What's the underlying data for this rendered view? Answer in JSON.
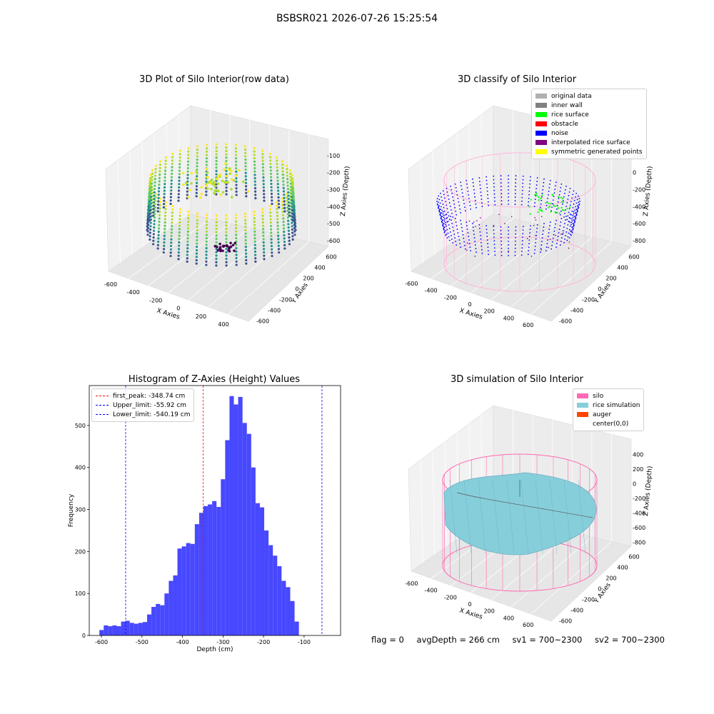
{
  "figure": {
    "suptitle": "BSBSR021 2026-07-26 15:25:54"
  },
  "status": {
    "flag": "flag = 0",
    "avg_depth": "avgDepth = 266 cm",
    "sv1": "sv1 = 700~2300",
    "sv2": "sv2 = 700~2300"
  },
  "chart_data": [
    {
      "id": "raw3d",
      "type": "scatter",
      "title": "3D Plot of Silo Interior(row data)",
      "xlabel": "X Axies",
      "ylabel": "Y Axies",
      "zlabel": "Z Axies (Depth)",
      "x_ticks": [
        "-600",
        "-400",
        "-200",
        "0",
        "200",
        "400"
      ],
      "y_ticks": [
        "600",
        "400",
        "200",
        "0",
        "-200",
        "-400",
        "-600"
      ],
      "z_ticks": [
        "-100",
        "-200",
        "-300",
        "-400",
        "-500",
        "-600"
      ],
      "colormap": "viridis",
      "colors": {
        "deep": "#440154",
        "mid": "#21918c",
        "shallow": "#fde725"
      }
    },
    {
      "id": "classify3d",
      "type": "scatter",
      "title": "3D classify of Silo Interior",
      "xlabel": "X Axies",
      "ylabel": "Y Axies",
      "zlabel": "Z Axies (Depth)",
      "x_ticks": [
        "-600",
        "-400",
        "-200",
        "0",
        "200",
        "400",
        "600"
      ],
      "y_ticks": [
        "600",
        "400",
        "200",
        "0",
        "-200",
        "-400",
        "-600"
      ],
      "z_ticks": [
        "200",
        "0",
        "-200",
        "-400",
        "-600",
        "-800"
      ],
      "legend": [
        {
          "label": "original data",
          "color": "#b0b0b0"
        },
        {
          "label": "inner wall",
          "color": "#808080"
        },
        {
          "label": "rice surface",
          "color": "#00ff00"
        },
        {
          "label": "obstacle",
          "color": "#ff0000"
        },
        {
          "label": "noise",
          "color": "#0000ff"
        },
        {
          "label": "interpolated rice surface",
          "color": "#800080"
        },
        {
          "label": "symmetric generated points",
          "color": "#ffff00"
        }
      ],
      "wall_color": "#ffb6d9"
    },
    {
      "id": "histogram",
      "type": "bar",
      "title": "Histogram of Z-Axies (Height) Values",
      "xlabel": "Depth (cm)",
      "ylabel": "Frequency",
      "xlim": [
        -630,
        -10
      ],
      "ylim": [
        0,
        595
      ],
      "x_ticks": [
        -600,
        -500,
        -400,
        -300,
        -200,
        -100
      ],
      "y_ticks": [
        0,
        100,
        200,
        300,
        400,
        500
      ],
      "bar_color": "#4848ff",
      "bin_start": -605,
      "bin_width": 10.7,
      "values": [
        13,
        24,
        22,
        24,
        22,
        33,
        35,
        30,
        28,
        30,
        32,
        50,
        68,
        75,
        72,
        100,
        130,
        143,
        207,
        212,
        220,
        218,
        265,
        292,
        308,
        312,
        320,
        306,
        372,
        465,
        570,
        550,
        568,
        506,
        480,
        400,
        315,
        305,
        250,
        215,
        190,
        165,
        130,
        115,
        82,
        33
      ],
      "lines": [
        {
          "label": "first_peak: -348.74 cm",
          "value": -348.74,
          "color": "#ff0000"
        },
        {
          "label": "Upper_limit: -55.92 cm",
          "value": -55.92,
          "color": "#0000ff"
        },
        {
          "label": "Lower_limit: -540.19 cm",
          "value": -540.19,
          "color": "#0000ff"
        }
      ]
    },
    {
      "id": "simulation3d",
      "type": "area",
      "title": "3D simulation of Silo Interior",
      "xlabel": "X Axies",
      "ylabel": "Y Axies",
      "zlabel": "Z Axies (Depth)",
      "x_ticks": [
        "-600",
        "-400",
        "-200",
        "0",
        "200",
        "400",
        "600"
      ],
      "y_ticks": [
        "600",
        "400",
        "200",
        "0",
        "-200",
        "-400",
        "-600"
      ],
      "z_ticks": [
        "400",
        "200",
        "0",
        "-200",
        "-400",
        "-600",
        "-800"
      ],
      "legend": [
        {
          "label": "silo",
          "color": "#ff69b4"
        },
        {
          "label": "rice simulation",
          "color": "#87cedb"
        },
        {
          "label": "auger",
          "color": "#ff4500"
        },
        {
          "label": "center(0,0)",
          "color": ""
        }
      ]
    }
  ]
}
